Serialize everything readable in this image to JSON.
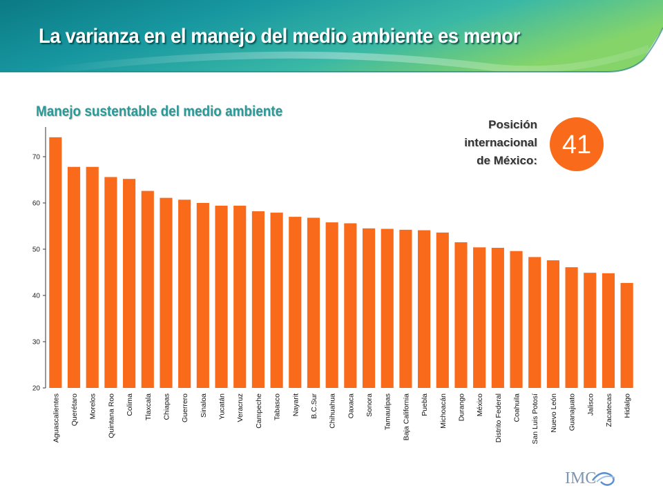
{
  "header": {
    "title": "La varianza en el manejo del medio ambiente es menor"
  },
  "position": {
    "label_lines": [
      "Posición",
      "internacional",
      "de México:"
    ],
    "value": "41"
  },
  "logo": {
    "text": "IMC"
  },
  "colors": {
    "bar": "#f96a1a",
    "badge": "#f96a1a",
    "subtitle": "#2a9a98",
    "banner_dark": "#0e7e86",
    "banner_light": "#7ed06c"
  },
  "chart_data": {
    "type": "bar",
    "title": "Manejo sustentable del medio ambiente",
    "xlabel": "",
    "ylabel": "",
    "ylim": [
      20,
      75
    ],
    "yticks": [
      20,
      30,
      40,
      50,
      60,
      70
    ],
    "grid": false,
    "categories": [
      "Aguascalientes",
      "Querétaro",
      "Morelos",
      "Quintana Roo",
      "Colima",
      "Tlaxcala",
      "Chiapas",
      "Guerrero",
      "Sinaloa",
      "Yucatán",
      "Veracruz",
      "Campeche",
      "Tabasco",
      "Nayarit",
      "B.C.Sur",
      "Chihuahua",
      "Oaxaca",
      "Sonora",
      "Tamaulipas",
      "Baja California",
      "Puebla",
      "Michoacán",
      "Durango",
      "México",
      "Distrito Federal",
      "Coahuila",
      "San Luis Potosí",
      "Nuevo León",
      "Guanajuato",
      "Jalisco",
      "Zacatecas",
      "Hidalgo"
    ],
    "values": [
      74.2,
      67.8,
      67.8,
      65.6,
      65.2,
      62.6,
      61.1,
      60.7,
      60.0,
      59.4,
      59.4,
      58.2,
      57.9,
      57.0,
      56.8,
      55.8,
      55.6,
      54.5,
      54.4,
      54.2,
      54.1,
      53.6,
      51.5,
      50.4,
      50.3,
      49.6,
      48.3,
      47.6,
      46.1,
      44.9,
      44.8,
      42.7
    ]
  }
}
